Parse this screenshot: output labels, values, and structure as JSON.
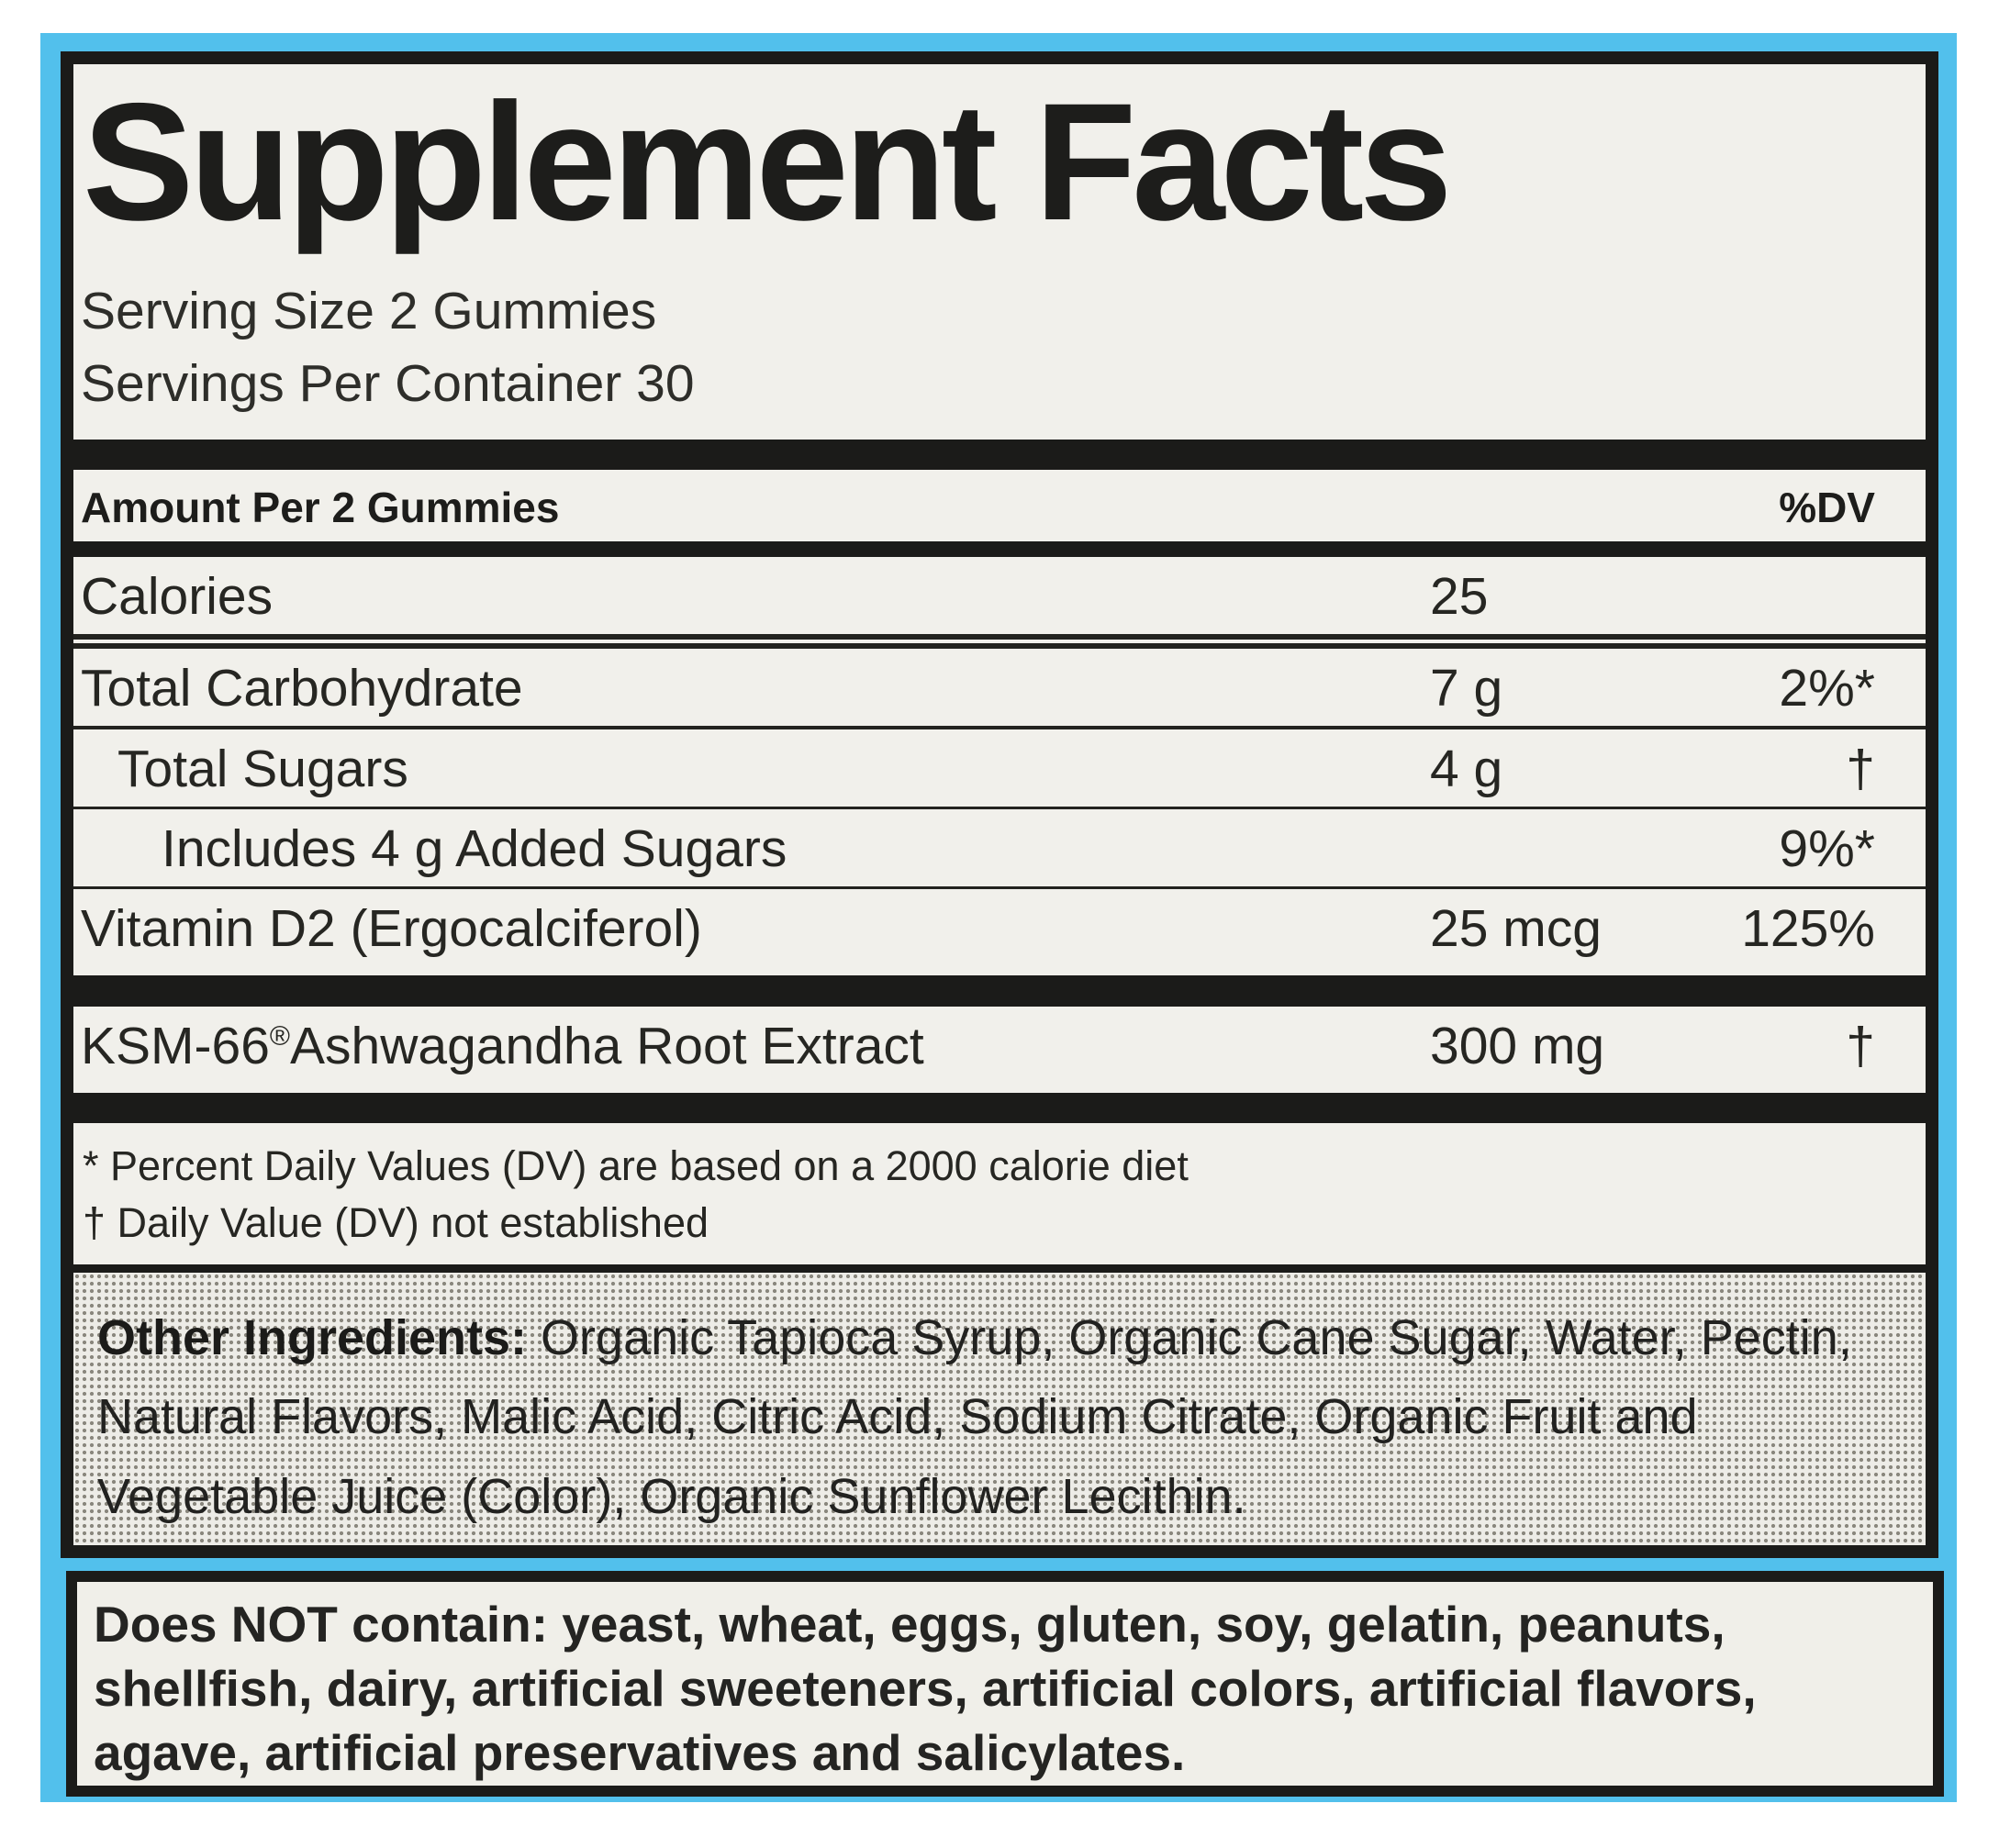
{
  "colors": {
    "label_background_blue": "#52c0ec",
    "panel_background": "#f1f0eb",
    "bar_black": "#1b1b19"
  },
  "sf": {
    "title": "Supplement Facts",
    "serving_size": "Serving Size 2 Gummies",
    "servings_per_container": "Servings Per Container 30",
    "amount_header": "Amount Per 2 Gummies",
    "dv_header": "%DV",
    "rows": [
      {
        "name": "Calories",
        "amount": "25",
        "dv": ""
      },
      {
        "name": "Total Carbohydrate",
        "amount": "7 g",
        "dv": "2%*"
      },
      {
        "name": "Total Sugars",
        "amount": "4 g",
        "dv": "†"
      },
      {
        "name": "Includes 4 g Added Sugars",
        "amount": "",
        "dv": "9%*"
      },
      {
        "name": "Vitamin D2 (Ergocalciferol)",
        "amount": "25 mcg",
        "dv": "125%"
      }
    ],
    "extract": {
      "brand": "KSM-66",
      "reg": "®",
      "rest": "Ashwagandha Root Extract",
      "amount": "300 mg",
      "dv": "†"
    },
    "footnotes": [
      "* Percent Daily Values (DV) are based on a 2000 calorie diet",
      "† Daily Value (DV) not established"
    ],
    "other_ingredients": {
      "label": "Other Ingredients:",
      "text": " Organic Tapioca Syrup, Organic Cane Sugar, Water, Pectin, Natural Flavors, Malic Acid, Citric Acid, Sodium Citrate, Organic Fruit and Vegetable Juice (Color), Organic Sunflower Lecithin."
    }
  },
  "allergen": {
    "lead": "Does NOT contain:",
    "text": " yeast, wheat, eggs, gluten, soy, gelatin, peanuts, shellfish, dairy, artificial sweeteners, artificial colors, artificial flavors, agave, artificial preservatives and salicylates."
  }
}
